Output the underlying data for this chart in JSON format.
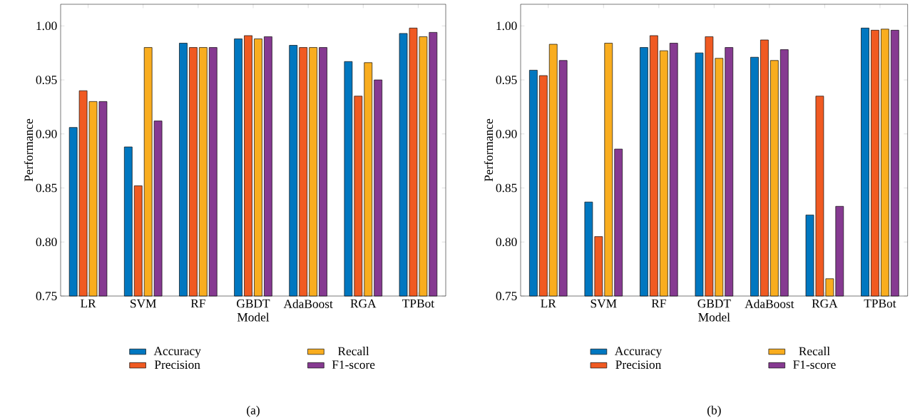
{
  "chart_data": [
    {
      "type": "bar",
      "categories": [
        "LR",
        "SVM",
        "RF",
        "GBDT",
        "AdaBoost",
        "RGA",
        "TPBot"
      ],
      "xlabel": "Model",
      "ylabel": "Performance",
      "ylim": [
        0.75,
        1.02
      ],
      "yticks": [
        0.75,
        {
          "value": 0.8,
          "label": "0.80"
        },
        0.85,
        {
          "value": 0.9,
          "label": "0.90"
        },
        0.95,
        {
          "value": 1.0,
          "label": "1.00"
        }
      ],
      "legend": "bottom",
      "annotations": [
        "(a)"
      ],
      "series": [
        {
          "name": "Accuracy",
          "color": "#0077c0",
          "values": [
            0.906,
            0.888,
            0.984,
            0.988,
            0.982,
            0.967,
            0.993
          ]
        },
        {
          "name": "Precision",
          "color": "#f05a22",
          "values": [
            0.94,
            0.852,
            0.98,
            0.991,
            0.98,
            0.935,
            0.998
          ]
        },
        {
          "name": "Recall",
          "color": "#f9ad1f",
          "values": [
            0.93,
            0.98,
            0.98,
            0.988,
            0.98,
            0.966,
            0.99
          ]
        },
        {
          "name": "F1-score",
          "color": "#863a91",
          "values": [
            0.93,
            0.912,
            0.98,
            0.99,
            0.98,
            0.95,
            0.994
          ]
        }
      ]
    },
    {
      "type": "bar",
      "categories": [
        "LR",
        "SVM",
        "RF",
        "GBDT",
        "AdaBoost",
        "RGA",
        "TPBot"
      ],
      "xlabel": "Model",
      "ylabel": "Performance",
      "ylim": [
        0.75,
        1.02
      ],
      "yticks": [
        0.75,
        {
          "value": 0.8,
          "label": "0.80"
        },
        0.85,
        {
          "value": 0.9,
          "label": "0.90"
        },
        0.95,
        {
          "value": 1.0,
          "label": "1.00"
        }
      ],
      "legend": "bottom",
      "annotations": [
        "(b)"
      ],
      "series": [
        {
          "name": "Accuracy",
          "color": "#0077c0",
          "values": [
            0.959,
            0.837,
            0.98,
            0.975,
            0.971,
            0.825,
            0.998
          ]
        },
        {
          "name": "Precision",
          "color": "#f05a22",
          "values": [
            0.954,
            0.805,
            0.991,
            0.99,
            0.987,
            0.935,
            0.996
          ]
        },
        {
          "name": "Recall",
          "color": "#f9ad1f",
          "values": [
            0.983,
            0.984,
            0.977,
            0.97,
            0.968,
            0.766,
            0.997
          ]
        },
        {
          "name": "F1-score",
          "color": "#863a91",
          "values": [
            0.968,
            0.886,
            0.984,
            0.98,
            0.978,
            0.833,
            0.996
          ]
        }
      ]
    }
  ]
}
